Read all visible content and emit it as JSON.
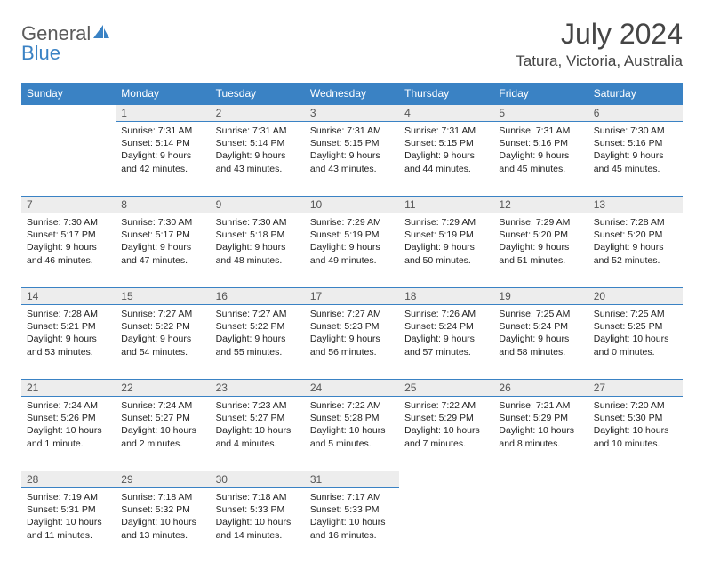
{
  "brand": {
    "line1": "General",
    "line2": "Blue"
  },
  "title": "July 2024",
  "location": "Tatura, Victoria, Australia",
  "colors": {
    "header_bg": "#3a82c4",
    "header_text": "#ffffff",
    "daynum_bg": "#ededed",
    "border": "#3a82c4",
    "logo_gray": "#5b5b5b",
    "logo_blue": "#3a82c4"
  },
  "typography": {
    "title_fontsize": 32,
    "location_fontsize": 17,
    "header_fontsize": 12,
    "cell_fontsize": 10.5
  },
  "weekdays": [
    "Sunday",
    "Monday",
    "Tuesday",
    "Wednesday",
    "Thursday",
    "Friday",
    "Saturday"
  ],
  "weeks": [
    {
      "nums": [
        "",
        "1",
        "2",
        "3",
        "4",
        "5",
        "6"
      ],
      "cells": [
        null,
        {
          "sunrise": "Sunrise: 7:31 AM",
          "sunset": "Sunset: 5:14 PM",
          "daylight": "Daylight: 9 hours and 42 minutes."
        },
        {
          "sunrise": "Sunrise: 7:31 AM",
          "sunset": "Sunset: 5:14 PM",
          "daylight": "Daylight: 9 hours and 43 minutes."
        },
        {
          "sunrise": "Sunrise: 7:31 AM",
          "sunset": "Sunset: 5:15 PM",
          "daylight": "Daylight: 9 hours and 43 minutes."
        },
        {
          "sunrise": "Sunrise: 7:31 AM",
          "sunset": "Sunset: 5:15 PM",
          "daylight": "Daylight: 9 hours and 44 minutes."
        },
        {
          "sunrise": "Sunrise: 7:31 AM",
          "sunset": "Sunset: 5:16 PM",
          "daylight": "Daylight: 9 hours and 45 minutes."
        },
        {
          "sunrise": "Sunrise: 7:30 AM",
          "sunset": "Sunset: 5:16 PM",
          "daylight": "Daylight: 9 hours and 45 minutes."
        }
      ]
    },
    {
      "nums": [
        "7",
        "8",
        "9",
        "10",
        "11",
        "12",
        "13"
      ],
      "cells": [
        {
          "sunrise": "Sunrise: 7:30 AM",
          "sunset": "Sunset: 5:17 PM",
          "daylight": "Daylight: 9 hours and 46 minutes."
        },
        {
          "sunrise": "Sunrise: 7:30 AM",
          "sunset": "Sunset: 5:17 PM",
          "daylight": "Daylight: 9 hours and 47 minutes."
        },
        {
          "sunrise": "Sunrise: 7:30 AM",
          "sunset": "Sunset: 5:18 PM",
          "daylight": "Daylight: 9 hours and 48 minutes."
        },
        {
          "sunrise": "Sunrise: 7:29 AM",
          "sunset": "Sunset: 5:19 PM",
          "daylight": "Daylight: 9 hours and 49 minutes."
        },
        {
          "sunrise": "Sunrise: 7:29 AM",
          "sunset": "Sunset: 5:19 PM",
          "daylight": "Daylight: 9 hours and 50 minutes."
        },
        {
          "sunrise": "Sunrise: 7:29 AM",
          "sunset": "Sunset: 5:20 PM",
          "daylight": "Daylight: 9 hours and 51 minutes."
        },
        {
          "sunrise": "Sunrise: 7:28 AM",
          "sunset": "Sunset: 5:20 PM",
          "daylight": "Daylight: 9 hours and 52 minutes."
        }
      ]
    },
    {
      "nums": [
        "14",
        "15",
        "16",
        "17",
        "18",
        "19",
        "20"
      ],
      "cells": [
        {
          "sunrise": "Sunrise: 7:28 AM",
          "sunset": "Sunset: 5:21 PM",
          "daylight": "Daylight: 9 hours and 53 minutes."
        },
        {
          "sunrise": "Sunrise: 7:27 AM",
          "sunset": "Sunset: 5:22 PM",
          "daylight": "Daylight: 9 hours and 54 minutes."
        },
        {
          "sunrise": "Sunrise: 7:27 AM",
          "sunset": "Sunset: 5:22 PM",
          "daylight": "Daylight: 9 hours and 55 minutes."
        },
        {
          "sunrise": "Sunrise: 7:27 AM",
          "sunset": "Sunset: 5:23 PM",
          "daylight": "Daylight: 9 hours and 56 minutes."
        },
        {
          "sunrise": "Sunrise: 7:26 AM",
          "sunset": "Sunset: 5:24 PM",
          "daylight": "Daylight: 9 hours and 57 minutes."
        },
        {
          "sunrise": "Sunrise: 7:25 AM",
          "sunset": "Sunset: 5:24 PM",
          "daylight": "Daylight: 9 hours and 58 minutes."
        },
        {
          "sunrise": "Sunrise: 7:25 AM",
          "sunset": "Sunset: 5:25 PM",
          "daylight": "Daylight: 10 hours and 0 minutes."
        }
      ]
    },
    {
      "nums": [
        "21",
        "22",
        "23",
        "24",
        "25",
        "26",
        "27"
      ],
      "cells": [
        {
          "sunrise": "Sunrise: 7:24 AM",
          "sunset": "Sunset: 5:26 PM",
          "daylight": "Daylight: 10 hours and 1 minute."
        },
        {
          "sunrise": "Sunrise: 7:24 AM",
          "sunset": "Sunset: 5:27 PM",
          "daylight": "Daylight: 10 hours and 2 minutes."
        },
        {
          "sunrise": "Sunrise: 7:23 AM",
          "sunset": "Sunset: 5:27 PM",
          "daylight": "Daylight: 10 hours and 4 minutes."
        },
        {
          "sunrise": "Sunrise: 7:22 AM",
          "sunset": "Sunset: 5:28 PM",
          "daylight": "Daylight: 10 hours and 5 minutes."
        },
        {
          "sunrise": "Sunrise: 7:22 AM",
          "sunset": "Sunset: 5:29 PM",
          "daylight": "Daylight: 10 hours and 7 minutes."
        },
        {
          "sunrise": "Sunrise: 7:21 AM",
          "sunset": "Sunset: 5:29 PM",
          "daylight": "Daylight: 10 hours and 8 minutes."
        },
        {
          "sunrise": "Sunrise: 7:20 AM",
          "sunset": "Sunset: 5:30 PM",
          "daylight": "Daylight: 10 hours and 10 minutes."
        }
      ]
    },
    {
      "nums": [
        "28",
        "29",
        "30",
        "31",
        "",
        "",
        ""
      ],
      "cells": [
        {
          "sunrise": "Sunrise: 7:19 AM",
          "sunset": "Sunset: 5:31 PM",
          "daylight": "Daylight: 10 hours and 11 minutes."
        },
        {
          "sunrise": "Sunrise: 7:18 AM",
          "sunset": "Sunset: 5:32 PM",
          "daylight": "Daylight: 10 hours and 13 minutes."
        },
        {
          "sunrise": "Sunrise: 7:18 AM",
          "sunset": "Sunset: 5:33 PM",
          "daylight": "Daylight: 10 hours and 14 minutes."
        },
        {
          "sunrise": "Sunrise: 7:17 AM",
          "sunset": "Sunset: 5:33 PM",
          "daylight": "Daylight: 10 hours and 16 minutes."
        },
        null,
        null,
        null
      ]
    }
  ]
}
